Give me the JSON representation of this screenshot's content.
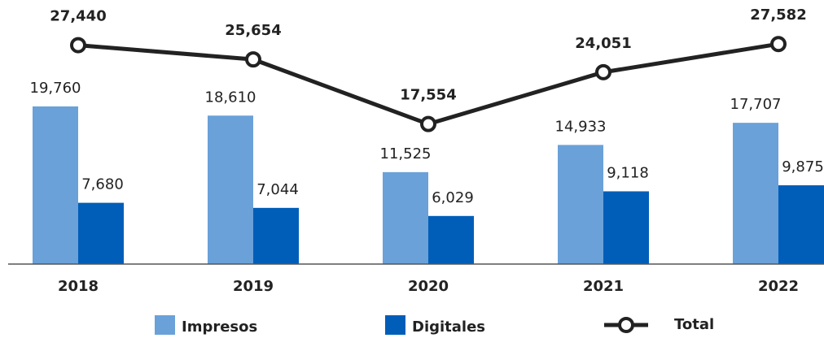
{
  "chart_data": {
    "type": "bar",
    "categories": [
      "2018",
      "2019",
      "2020",
      "2021",
      "2022"
    ],
    "ylim": [
      0,
      33000
    ],
    "series": [
      {
        "name": "Impresos",
        "color": "#6aa1d9",
        "values": [
          19760,
          18610,
          11525,
          14933,
          17707
        ],
        "value_labels": [
          "19,760",
          "18,610",
          "11,525",
          "14,933",
          "17,707"
        ]
      },
      {
        "name": "Digitales",
        "color": "#005eb8",
        "values": [
          7680,
          7044,
          6029,
          9118,
          9875
        ],
        "value_labels": [
          "7,680",
          "7,044",
          "6,029",
          "9,118",
          "9,875"
        ]
      },
      {
        "name": "Total",
        "type": "line",
        "color": "#222222",
        "values": [
          27440,
          25654,
          17554,
          24051,
          27582
        ],
        "value_labels": [
          "27,440",
          "25,654",
          "17,554",
          "24,051",
          "27,582"
        ]
      }
    ],
    "legend": "bottom"
  }
}
